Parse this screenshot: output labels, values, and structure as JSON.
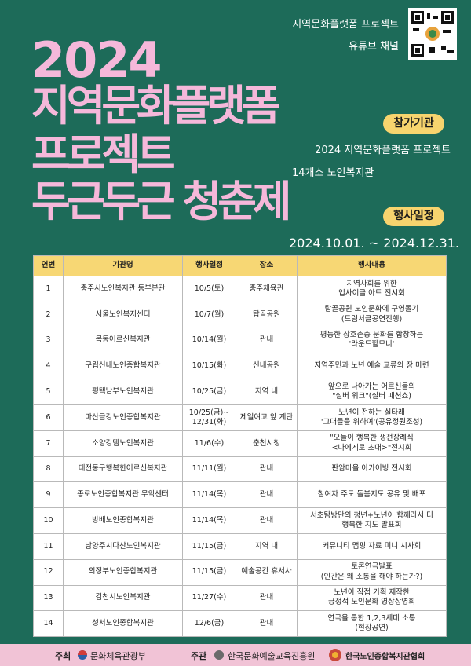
{
  "header": {
    "year": "2024",
    "title_lines": [
      "지역문화플랫폼",
      "프로젝트",
      "두근두근 청춘제"
    ]
  },
  "qr_caption": [
    "지역문화플랫폼 프로젝트",
    "유튜브 채널"
  ],
  "participants": {
    "label": "참가기관",
    "lines": [
      "2024 지역문화플랫폼 프로젝트",
      "14개소 노인복지관"
    ]
  },
  "schedule": {
    "label": "행사일정",
    "period": "2024.10.01. ~ 2024.12.31."
  },
  "table": {
    "headers": [
      "연번",
      "기관명",
      "행사일정",
      "장소",
      "행사내용"
    ],
    "rows": [
      [
        "1",
        "충주시노인복지관 동부분관",
        "10/5(토)",
        "충주체육관",
        "지역사회를 위한\n업사이클 아트 전시회"
      ],
      [
        "2",
        "서울노인복지센터",
        "10/7(월)",
        "탑골공원",
        "탑골공원 노인문화에 구영돌기\n(드럼서클공연진행)"
      ],
      [
        "3",
        "목동어르신복지관",
        "10/14(월)",
        "관내",
        "평등한 상호존중 문화를 합창하는\n'라운드할모니'"
      ],
      [
        "4",
        "구립신내노인종합복지관",
        "10/15(화)",
        "신내공원",
        "지역주민과 노년 예술 교류의 장 마련"
      ],
      [
        "5",
        "평택남부노인복지관",
        "10/25(금)",
        "지역 내",
        "앞으로 나아가는 어르신들의\n\"실버 워크\"(실버 패션쇼)"
      ],
      [
        "6",
        "마산금강노인종합복지관",
        "10/25(금)~\n12/31(화)",
        "제일여고 앞 계단",
        "노년이 전하는 실타래\n'그대들을 위하여'(공유정원조성)"
      ],
      [
        "7",
        "소양강댐노인복지관",
        "11/6(수)",
        "춘천시청",
        "\"오늘이 행복한 생전장례식\n<나에게로 초대>\"전시회"
      ],
      [
        "8",
        "대전동구행복한어르신복지관",
        "11/11(월)",
        "관내",
        "판암마을 아카이빙 전시회"
      ],
      [
        "9",
        "종로노인종합복지관 무악센터",
        "11/14(목)",
        "관내",
        "참여자 주도 돌봄지도 공유 및 배포"
      ],
      [
        "10",
        "방배노인종합복지관",
        "11/14(목)",
        "관내",
        "서초탐방단의 청년+노년이 함께라서 더\n행복한 지도 발표회"
      ],
      [
        "11",
        "남양주시다산노인복지관",
        "11/15(금)",
        "지역 내",
        "커뮤니티 맵핑 자료 미니 시사회"
      ],
      [
        "12",
        "의정부노인종합복지관",
        "11/15(금)",
        "예술공간 휴서사",
        "토론연극발표\n(인간은 왜 소통을 해야 하는가?)"
      ],
      [
        "13",
        "김천시노인복지관",
        "11/27(수)",
        "관내",
        "노년이 직접 기획 제작한\n긍정적 노인문화 영상상영회"
      ],
      [
        "14",
        "성서노인종합복지관",
        "12/6(금)",
        "관내",
        "연극을 통한 1,2,3세대 소통\n(현장공연)"
      ]
    ]
  },
  "footer": {
    "host_label": "주최",
    "host": "문화체육관광부",
    "organizer_label": "주관",
    "organizer": "한국문화예술교육진흥원",
    "partner": "한국노인종합복지관협회"
  }
}
